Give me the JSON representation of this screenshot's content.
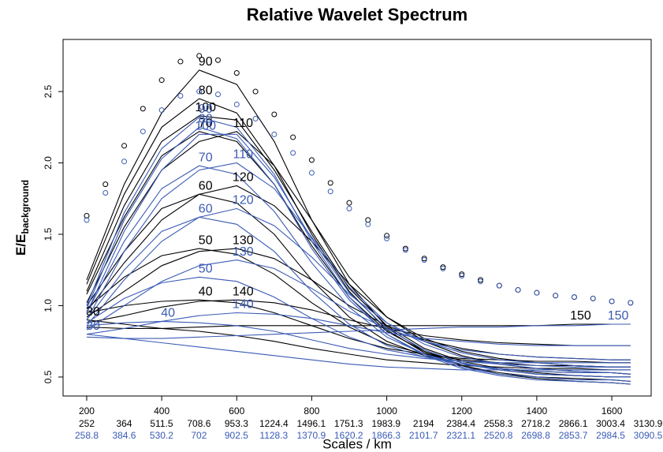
{
  "chart_data": {
    "type": "line",
    "title": "Relative Wavelet Spectrum",
    "xlabel": "Scales / km",
    "ylabel": "E/E",
    "ylabel_sub": "background",
    "xlim": [
      137,
      1705
    ],
    "ylim": [
      0.367,
      2.865
    ],
    "xticks": [
      200,
      400,
      600,
      800,
      1000,
      1200,
      1400,
      1600
    ],
    "yticks": [
      0.5,
      {
        "value": 1,
        "label": "1.0"
      },
      1.5,
      {
        "value": 2,
        "label": "2.0"
      },
      2.5
    ],
    "x": [
      200,
      300,
      400,
      500,
      600,
      700,
      800,
      900,
      1000,
      1100,
      1200,
      1300,
      1400,
      1500,
      1600,
      1650
    ],
    "series": [
      {
        "name": "90",
        "color": "#000000",
        "values": [
          1.18,
          1.85,
          2.35,
          2.65,
          2.55,
          2.15,
          1.6,
          1.15,
          0.85,
          0.68,
          0.58,
          0.52,
          0.49,
          0.47,
          0.46,
          0.45
        ]
      },
      {
        "name": "80",
        "color": "#000000",
        "values": [
          1.15,
          1.78,
          2.25,
          2.45,
          2.35,
          1.98,
          1.5,
          1.1,
          0.83,
          0.67,
          0.58,
          0.53,
          0.5,
          0.49,
          0.48,
          0.47
        ]
      },
      {
        "name": "100",
        "color": "#000000",
        "values": [
          1.1,
          1.7,
          2.15,
          2.33,
          2.3,
          1.95,
          1.52,
          1.12,
          0.86,
          0.7,
          0.61,
          0.56,
          0.53,
          0.51,
          0.5,
          0.5
        ]
      },
      {
        "name": "70",
        "color": "#000000",
        "values": [
          1.08,
          1.62,
          2.05,
          2.22,
          2.15,
          1.85,
          1.42,
          1.06,
          0.82,
          0.68,
          0.6,
          0.55,
          0.52,
          0.51,
          0.5,
          0.5
        ]
      },
      {
        "name": "110",
        "color": "#000000",
        "values": [
          1.02,
          1.55,
          1.95,
          2.15,
          2.22,
          1.98,
          1.6,
          1.2,
          0.92,
          0.75,
          0.65,
          0.59,
          0.56,
          0.54,
          0.53,
          0.52
        ]
      },
      {
        "name": "60",
        "color": "#000000",
        "values": [
          1.0,
          1.38,
          1.68,
          1.78,
          1.72,
          1.5,
          1.18,
          0.92,
          0.75,
          0.65,
          0.59,
          0.56,
          0.54,
          0.53,
          0.53,
          0.52
        ]
      },
      {
        "name": "120",
        "color": "#000000",
        "values": [
          0.96,
          1.3,
          1.6,
          1.78,
          1.84,
          1.7,
          1.45,
          1.15,
          0.92,
          0.77,
          0.68,
          0.63,
          0.6,
          0.58,
          0.57,
          0.57
        ]
      },
      {
        "name": "50",
        "color": "#000000",
        "values": [
          0.98,
          1.2,
          1.35,
          1.4,
          1.36,
          1.22,
          1.02,
          0.85,
          0.73,
          0.66,
          0.62,
          0.6,
          0.58,
          0.58,
          0.57,
          0.57
        ]
      },
      {
        "name": "130",
        "color": "#000000",
        "values": [
          0.92,
          1.1,
          1.28,
          1.38,
          1.4,
          1.33,
          1.18,
          1.0,
          0.86,
          0.76,
          0.7,
          0.66,
          0.64,
          0.63,
          0.62,
          0.62
        ]
      },
      {
        "name": "40",
        "color": "#000000",
        "values": [
          0.95,
          1.0,
          1.03,
          1.04,
          1.02,
          0.95,
          0.86,
          0.77,
          0.7,
          0.66,
          0.63,
          0.62,
          0.61,
          0.61,
          0.6,
          0.6
        ]
      },
      {
        "name": "140",
        "color": "#000000",
        "values": [
          0.88,
          0.93,
          0.99,
          1.03,
          1.04,
          1.02,
          0.97,
          0.9,
          0.84,
          0.79,
          0.76,
          0.74,
          0.73,
          0.72,
          0.72,
          0.72
        ]
      },
      {
        "name": "150",
        "color": "#000000",
        "values": [
          0.85,
          0.84,
          0.84,
          0.85,
          0.86,
          0.86,
          0.86,
          0.86,
          0.86,
          0.86,
          0.86,
          0.86,
          0.86,
          0.87,
          0.87,
          0.87
        ]
      },
      {
        "name": "30",
        "color": "#000000",
        "values": [
          0.9,
          0.87,
          0.84,
          0.82,
          0.79,
          0.75,
          0.7,
          0.66,
          0.62,
          0.6,
          0.58,
          0.57,
          0.56,
          0.56,
          0.55,
          0.55
        ]
      },
      {
        "name": "90",
        "color": "#3a5bb5",
        "values": [
          1.0,
          1.65,
          2.1,
          2.32,
          2.25,
          1.92,
          1.45,
          1.06,
          0.8,
          0.65,
          0.56,
          0.51,
          0.48,
          0.47,
          0.46,
          0.45
        ]
      },
      {
        "name": "80",
        "color": "#3a5bb5",
        "values": [
          0.98,
          1.6,
          2.03,
          2.25,
          2.17,
          1.85,
          1.4,
          1.04,
          0.8,
          0.66,
          0.57,
          0.52,
          0.5,
          0.48,
          0.48,
          0.47
        ]
      },
      {
        "name": "100",
        "color": "#3a5bb5",
        "values": [
          0.95,
          1.52,
          1.95,
          2.2,
          2.2,
          1.9,
          1.47,
          1.09,
          0.84,
          0.69,
          0.6,
          0.55,
          0.52,
          0.51,
          0.5,
          0.5
        ]
      },
      {
        "name": "70",
        "color": "#3a5bb5",
        "values": [
          0.95,
          1.45,
          1.82,
          1.98,
          1.92,
          1.66,
          1.3,
          0.99,
          0.78,
          0.66,
          0.59,
          0.55,
          0.52,
          0.51,
          0.5,
          0.5
        ]
      },
      {
        "name": "110",
        "color": "#3a5bb5",
        "values": [
          0.9,
          1.38,
          1.75,
          1.95,
          2.0,
          1.82,
          1.48,
          1.13,
          0.88,
          0.73,
          0.64,
          0.59,
          0.56,
          0.54,
          0.53,
          0.52
        ]
      },
      {
        "name": "60",
        "color": "#3a5bb5",
        "values": [
          0.9,
          1.25,
          1.52,
          1.62,
          1.57,
          1.38,
          1.1,
          0.87,
          0.72,
          0.64,
          0.59,
          0.56,
          0.54,
          0.53,
          0.53,
          0.52
        ]
      },
      {
        "name": "120",
        "color": "#3a5bb5",
        "values": [
          0.86,
          1.18,
          1.45,
          1.62,
          1.68,
          1.56,
          1.34,
          1.08,
          0.88,
          0.75,
          0.67,
          0.62,
          0.6,
          0.58,
          0.57,
          0.57
        ]
      },
      {
        "name": "50",
        "color": "#3a5bb5",
        "values": [
          0.88,
          1.05,
          1.16,
          1.2,
          1.17,
          1.06,
          0.91,
          0.78,
          0.69,
          0.64,
          0.61,
          0.59,
          0.58,
          0.57,
          0.57,
          0.57
        ]
      },
      {
        "name": "130",
        "color": "#3a5bb5",
        "values": [
          0.83,
          1.0,
          1.17,
          1.28,
          1.32,
          1.26,
          1.12,
          0.96,
          0.84,
          0.75,
          0.69,
          0.66,
          0.64,
          0.63,
          0.62,
          0.62
        ]
      },
      {
        "name": "40",
        "color": "#3a5bb5",
        "values": [
          0.86,
          0.88,
          0.89,
          0.88,
          0.86,
          0.82,
          0.76,
          0.7,
          0.66,
          0.63,
          0.61,
          0.6,
          0.6,
          0.6,
          0.6,
          0.6
        ]
      },
      {
        "name": "140",
        "color": "#3a5bb5",
        "values": [
          0.8,
          0.84,
          0.89,
          0.93,
          0.95,
          0.94,
          0.91,
          0.86,
          0.81,
          0.77,
          0.75,
          0.73,
          0.72,
          0.72,
          0.72,
          0.72
        ]
      },
      {
        "name": "150",
        "color": "#3a5bb5",
        "values": [
          0.78,
          0.77,
          0.77,
          0.78,
          0.79,
          0.8,
          0.81,
          0.82,
          0.83,
          0.84,
          0.85,
          0.85,
          0.86,
          0.86,
          0.87,
          0.87
        ]
      },
      {
        "name": "30",
        "color": "#3a5bb5",
        "values": [
          0.8,
          0.77,
          0.74,
          0.71,
          0.68,
          0.65,
          0.62,
          0.59,
          0.57,
          0.56,
          0.55,
          0.55,
          0.55,
          0.55,
          0.55,
          0.55
        ]
      }
    ],
    "marker_x": [
      200,
      250,
      300,
      350,
      400,
      450,
      500,
      550,
      600,
      650,
      700,
      750,
      800,
      850,
      900,
      950,
      1000,
      1050,
      1100,
      1150,
      1200,
      1250,
      1300,
      1350,
      1400,
      1450,
      1500,
      1550,
      1600,
      1650
    ],
    "markers": [
      {
        "color": "#000000",
        "values": [
          1.63,
          1.85,
          2.12,
          2.38,
          2.58,
          2.71,
          2.75,
          2.72,
          2.63,
          2.5,
          2.34,
          2.18,
          2.02,
          1.86,
          1.72,
          1.6,
          1.49,
          1.4,
          1.33,
          1.27,
          1.22,
          1.18,
          1.14,
          1.11,
          1.09,
          1.07,
          1.06,
          1.05,
          1.03,
          1.02
        ]
      },
      {
        "color": "#3a5bb5",
        "values": [
          1.6,
          1.79,
          2.01,
          2.22,
          2.37,
          2.47,
          2.5,
          2.48,
          2.41,
          2.31,
          2.2,
          2.07,
          1.93,
          1.8,
          1.68,
          1.57,
          1.47,
          1.39,
          1.32,
          1.26,
          1.21,
          1.17,
          1.14,
          1.11,
          1.09,
          1.07,
          1.06,
          1.05,
          1.03,
          1.02
        ]
      }
    ],
    "scale_rows": [
      {
        "color": "#000000",
        "labels": [
          252,
          364,
          511.5,
          708.6,
          953.3,
          1224.4,
          1496.1,
          1751.3,
          1983.9,
          2194,
          2384.4,
          2558.3,
          2718.2,
          2866.1,
          3003.4,
          3130.9
        ]
      },
      {
        "color": "#3a5bb5",
        "labels": [
          258.8,
          384.6,
          530.2,
          702,
          902.5,
          1128.3,
          1370.9,
          1620.2,
          1866.3,
          2101.7,
          2321.1,
          2520.8,
          2698.8,
          2853.7,
          2984.5,
          3090.5
        ]
      }
    ]
  }
}
